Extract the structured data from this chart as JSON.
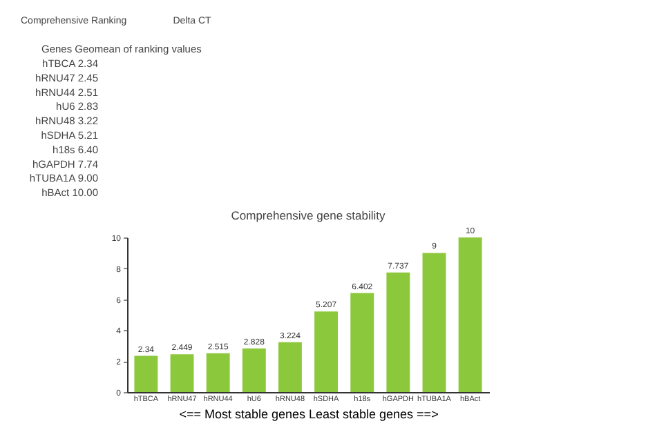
{
  "chart_data": {
    "type": "bar",
    "title": "Comprehensive gene stability",
    "xlabel": "<== Most stable genes    Least stable genes ==>",
    "categories": [
      "hTBCA",
      "hRNU47",
      "hRNU44",
      "hU6",
      "hRNU48",
      "hSDHA",
      "h18s",
      "hGAPDH",
      "hTUBA1A",
      "hBAct"
    ],
    "values": [
      2.34,
      2.449,
      2.515,
      2.828,
      3.224,
      5.207,
      6.402,
      7.737,
      9,
      10
    ],
    "color": "#8cc83c",
    "ylim": [
      0,
      10
    ],
    "yticks": [
      0,
      2,
      4,
      6,
      8,
      10
    ],
    "grid": false,
    "data_labels": true,
    "annotations": [
      "Comprehensive Ranking",
      "Delta CT",
      "Genes Geomean of ranking values",
      "hTBCA 2.34",
      "hRNU47 2.45",
      "hRNU44 2.51",
      "hU6 2.83",
      "hRNU48 3.22",
      "hSDHA 5.21",
      "h18s 6.40",
      "hGAPDH 7.74",
      "hTUBA1A 9.00",
      "hBAct 10.00"
    ]
  }
}
